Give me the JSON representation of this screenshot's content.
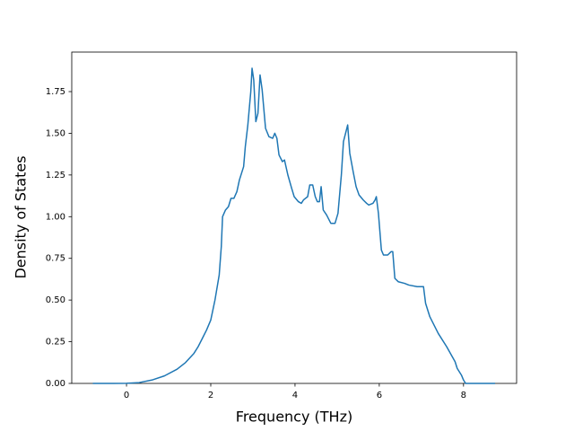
{
  "chart_data": {
    "type": "line",
    "x_label": "Frequency (THz)",
    "y_label": "Density of States",
    "x": [
      -0.8,
      -0.3,
      0,
      0.3,
      0.6,
      0.9,
      1.2,
      1.4,
      1.6,
      1.7,
      1.8,
      1.9,
      2.0,
      2.1,
      2.2,
      2.25,
      2.28,
      2.35,
      2.42,
      2.48,
      2.55,
      2.62,
      2.68,
      2.78,
      2.82,
      2.88,
      2.95,
      2.98,
      3.02,
      3.07,
      3.12,
      3.17,
      3.22,
      3.3,
      3.38,
      3.47,
      3.52,
      3.57,
      3.62,
      3.7,
      3.75,
      3.83,
      3.92,
      3.98,
      4.08,
      4.15,
      4.2,
      4.3,
      4.35,
      4.42,
      4.48,
      4.53,
      4.58,
      4.62,
      4.67,
      4.75,
      4.85,
      4.95,
      5.02,
      5.1,
      5.15,
      5.2,
      5.25,
      5.3,
      5.38,
      5.45,
      5.52,
      5.62,
      5.7,
      5.75,
      5.85,
      5.9,
      5.93,
      5.98,
      6.05,
      6.1,
      6.2,
      6.28,
      6.32,
      6.37,
      6.45,
      6.6,
      6.7,
      6.9,
      7.05,
      7.1,
      7.2,
      7.4,
      7.6,
      7.8,
      7.85,
      7.95,
      8.0,
      8.05,
      8.75
    ],
    "series": [
      {
        "color": "#1f77b4",
        "values": [
          0,
          0,
          0.001,
          0.005,
          0.02,
          0.045,
          0.085,
          0.125,
          0.18,
          0.22,
          0.27,
          0.32,
          0.38,
          0.5,
          0.65,
          0.82,
          1.0,
          1.04,
          1.06,
          1.11,
          1.11,
          1.15,
          1.22,
          1.3,
          1.42,
          1.55,
          1.75,
          1.89,
          1.82,
          1.57,
          1.62,
          1.85,
          1.76,
          1.53,
          1.48,
          1.47,
          1.5,
          1.47,
          1.37,
          1.33,
          1.34,
          1.25,
          1.17,
          1.12,
          1.09,
          1.08,
          1.1,
          1.12,
          1.19,
          1.19,
          1.12,
          1.09,
          1.09,
          1.18,
          1.04,
          1.01,
          0.96,
          0.96,
          1.02,
          1.25,
          1.45,
          1.5,
          1.55,
          1.38,
          1.27,
          1.18,
          1.13,
          1.1,
          1.08,
          1.07,
          1.08,
          1.1,
          1.12,
          1.02,
          0.8,
          0.77,
          0.77,
          0.79,
          0.79,
          0.63,
          0.61,
          0.6,
          0.59,
          0.58,
          0.58,
          0.48,
          0.4,
          0.3,
          0.22,
          0.13,
          0.09,
          0.05,
          0.02,
          0,
          0
        ]
      }
    ],
    "xlim": [
      -1.3,
      9.26
    ],
    "xticks": [
      0,
      2,
      4,
      6,
      8
    ],
    "ylim": [
      0,
      1.987
    ],
    "yticks": [
      {
        "value": 0,
        "label": "0.00"
      },
      {
        "value": 0.25,
        "label": "0.25"
      },
      {
        "value": 0.5,
        "label": "0.50"
      },
      {
        "value": 0.75,
        "label": "0.75"
      },
      {
        "value": 1.0,
        "label": "1.00"
      },
      {
        "value": 1.25,
        "label": "1.25"
      },
      {
        "value": 1.5,
        "label": "1.50"
      },
      {
        "value": 1.75,
        "label": "1.75"
      }
    ],
    "grid": false
  }
}
